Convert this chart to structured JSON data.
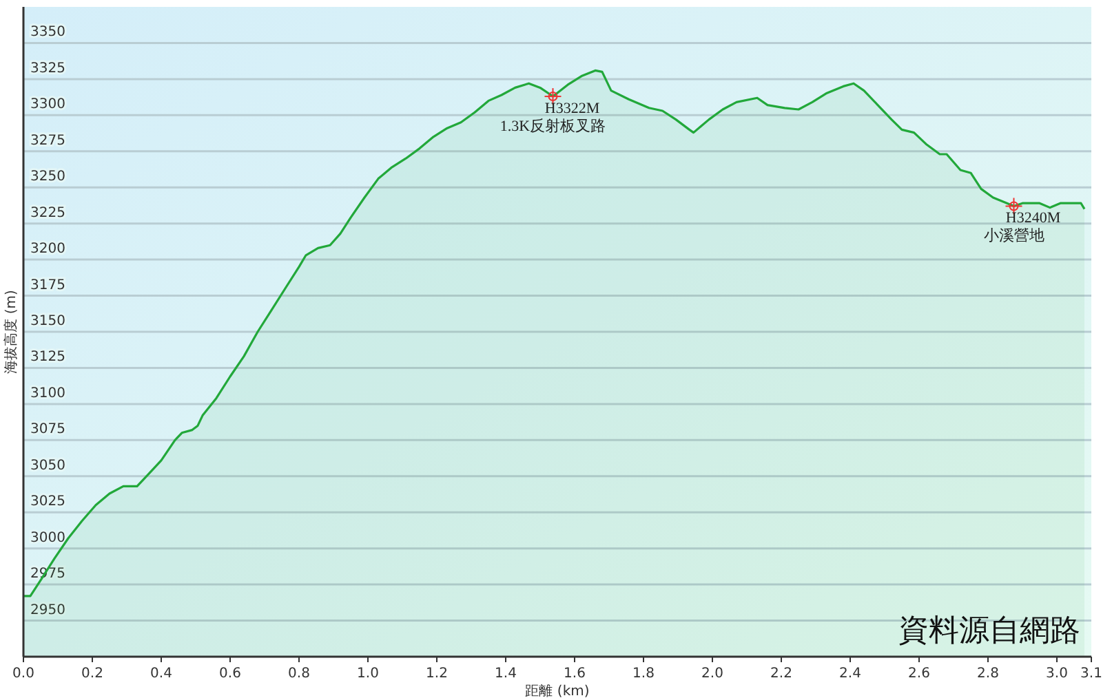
{
  "chart_data": {
    "type": "area",
    "xlabel": "距離 (km)",
    "ylabel": "海拔高度 (m)",
    "xlim": [
      0,
      3.1
    ],
    "xticks": [
      {
        "value": 0,
        "label": "0.0"
      },
      0.2,
      0.4,
      0.6,
      0.8,
      {
        "value": 1,
        "label": "1.0"
      },
      1.2,
      1.4,
      1.6,
      1.8,
      {
        "value": 2,
        "label": "2.0"
      },
      2.2,
      2.4,
      2.6,
      2.8,
      {
        "value": 3,
        "label": "3.0"
      },
      3.1
    ],
    "ylim": [
      2925,
      3375
    ],
    "yticks": [
      2950,
      2975,
      3000,
      3025,
      3050,
      3075,
      3100,
      3125,
      3150,
      3175,
      3200,
      3225,
      3250,
      3275,
      3300,
      3325,
      3350
    ],
    "grid": "y",
    "series": [
      {
        "color": "#22a83a",
        "x": [
          0,
          0.02,
          0.05,
          0.09,
          0.13,
          0.17,
          0.21,
          0.25,
          0.29,
          0.33,
          0.365,
          0.4,
          0.44,
          0.46,
          0.49,
          0.506,
          0.52,
          0.56,
          0.6,
          0.64,
          0.68,
          0.72,
          0.76,
          0.8,
          0.82,
          0.855,
          0.89,
          0.92,
          0.95,
          0.99,
          1.03,
          1.07,
          1.11,
          1.15,
          1.19,
          1.23,
          1.27,
          1.31,
          1.35,
          1.388,
          1.427,
          1.467,
          1.5,
          1.537,
          1.58,
          1.62,
          1.66,
          1.68,
          1.706,
          1.757,
          1.816,
          1.855,
          1.894,
          1.933,
          1.945,
          1.99,
          2.03,
          2.07,
          2.13,
          2.16,
          2.21,
          2.25,
          2.29,
          2.33,
          2.38,
          2.41,
          2.44,
          2.48,
          2.52,
          2.55,
          2.585,
          2.62,
          2.66,
          2.68,
          2.72,
          2.75,
          2.78,
          2.815,
          2.855,
          2.875,
          2.9,
          2.95,
          2.98,
          3.01,
          3.07,
          3.08
        ],
        "values": [
          2967,
          2967,
          2978,
          2993,
          3007,
          3019,
          3030,
          3038,
          3043,
          3043,
          3052,
          3061,
          3075,
          3080,
          3082,
          3085,
          3092,
          3104,
          3119,
          3133,
          3150,
          3165,
          3180,
          3195,
          3203,
          3208,
          3210,
          3218,
          3229,
          3243,
          3256,
          3264,
          3270,
          3277,
          3285,
          3291,
          3295,
          3302,
          3310,
          3314,
          3319,
          3322,
          3319,
          3313,
          3321,
          3327,
          3331,
          3330,
          3317,
          3311,
          3305,
          3303,
          3297,
          3290,
          3288,
          3297,
          3304,
          3309,
          3312,
          3307,
          3305,
          3304,
          3309,
          3315,
          3320,
          3322,
          3317,
          3307,
          3297,
          3290,
          3288,
          3280,
          3273,
          3273,
          3262,
          3260,
          3249,
          3243,
          3239,
          3237,
          3239,
          3239,
          3236,
          3239,
          3239,
          3235
        ]
      }
    ],
    "annotations": [
      {
        "text": "H3322M\n1.3K反射板叉路",
        "x": 1.537,
        "y": 3313
      },
      {
        "text": "H3240M\n小溪營地",
        "x": 2.875,
        "y": 3237
      },
      "資料源自網路"
    ]
  }
}
